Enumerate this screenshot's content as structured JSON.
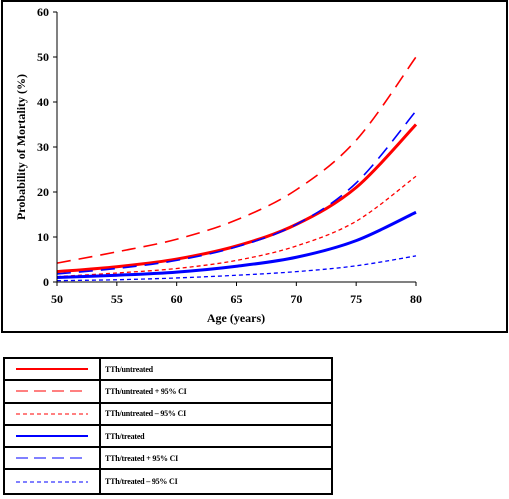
{
  "chart_data": {
    "type": "line",
    "title": "",
    "xlabel": "Age (years)",
    "ylabel": "Probability of Mortality (%)",
    "xlim": [
      50,
      80
    ],
    "ylim": [
      0,
      60
    ],
    "xticks": [
      50,
      55,
      60,
      65,
      70,
      75,
      80
    ],
    "yticks": [
      0,
      10,
      20,
      30,
      40,
      50,
      60
    ],
    "grid": false,
    "legend_position": "below",
    "x": [
      50,
      55,
      60,
      65,
      70,
      75,
      80
    ],
    "series": [
      {
        "name": "TTh/untreated",
        "color": "#ff0000",
        "dash": "solid",
        "width": 3,
        "values": [
          2.3,
          3.4,
          5.1,
          8.0,
          12.8,
          21.0,
          35.0
        ]
      },
      {
        "name": "TTh/untreated + 95% CI",
        "color": "#ff0000",
        "dash": "long",
        "width": 1.6,
        "values": [
          4.2,
          6.7,
          9.5,
          13.8,
          20.5,
          31.5,
          50.0
        ]
      },
      {
        "name": "TTh/untreated – 95% CI",
        "color": "#ff0000",
        "dash": "short",
        "width": 1.3,
        "values": [
          1.2,
          2.0,
          3.0,
          4.8,
          8.0,
          13.5,
          23.5
        ]
      },
      {
        "name": "TTh/treated",
        "color": "#0000ff",
        "dash": "solid",
        "width": 3,
        "values": [
          1.0,
          1.5,
          2.2,
          3.5,
          5.5,
          9.2,
          15.5
        ]
      },
      {
        "name": "TTh/treated + 95% CI",
        "color": "#0000ff",
        "dash": "long",
        "width": 1.6,
        "values": [
          1.8,
          3.0,
          4.8,
          7.8,
          12.8,
          22.0,
          38.0
        ]
      },
      {
        "name": "TTh/treated – 95% CI",
        "color": "#0000ff",
        "dash": "short",
        "width": 1.3,
        "values": [
          0.3,
          0.5,
          0.9,
          1.5,
          2.3,
          3.6,
          5.8
        ]
      }
    ]
  }
}
